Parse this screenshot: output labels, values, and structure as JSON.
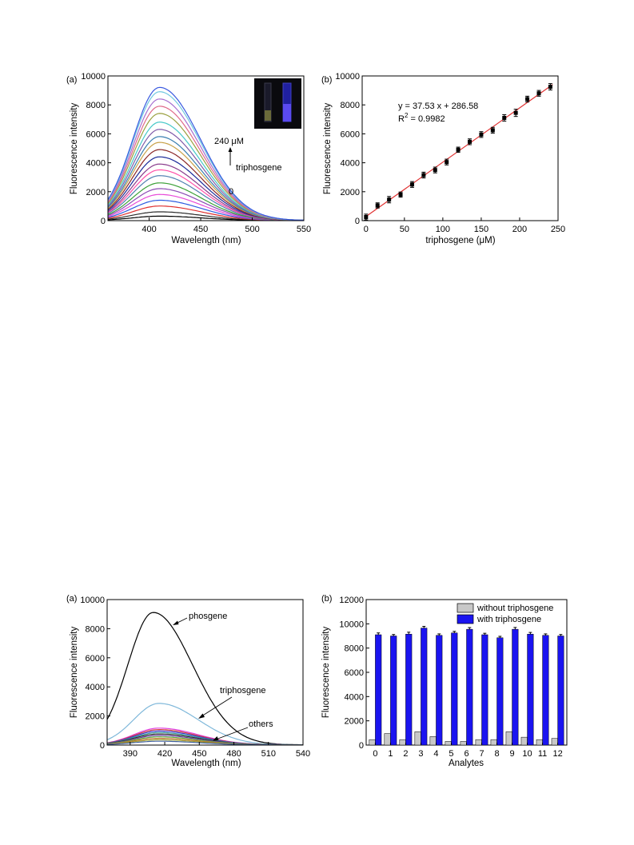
{
  "charts": {
    "a": {
      "panel_label": "(a)",
      "xlabel": "Wavelength (nm)",
      "ylabel": "Fluorescence intensity",
      "xticks": [
        "400",
        "450",
        "500",
        "550"
      ],
      "yticks": [
        "0",
        "2000",
        "4000",
        "6000",
        "8000",
        "10000"
      ],
      "top_label": "240 μM",
      "middle_label": "triphosgene",
      "bottom_label": "0"
    },
    "b": {
      "panel_label": "(b)",
      "xlabel": "triphosgene (μM)",
      "ylabel": "Fluorescence intensity",
      "xticks": [
        "0",
        "50",
        "100",
        "150",
        "200",
        "250"
      ],
      "yticks": [
        "0",
        "2000",
        "4000",
        "6000",
        "8000",
        "10000"
      ],
      "equation": "y = 37.53 x + 286.58",
      "r2_label": "R",
      "r2_sup": "2",
      "r2_value": " = 0.9982"
    },
    "c": {
      "panel_label": "(a)",
      "xlabel": "Wavelength (nm)",
      "ylabel": "Fluorescence intensity",
      "xticks": [
        "390",
        "420",
        "450",
        "480",
        "510",
        "540"
      ],
      "yticks": [
        "0",
        "2000",
        "4000",
        "6000",
        "8000",
        "10000"
      ],
      "label_phosgene": "phosgene",
      "label_triphosgene": "triphosgene",
      "label_others": "others"
    },
    "d": {
      "panel_label": "(b)",
      "xlabel": "Analytes",
      "ylabel": "Fluorescence intensity",
      "xticks": [
        "0",
        "1",
        "2",
        "3",
        "4",
        "5",
        "6",
        "7",
        "8",
        "9",
        "10",
        "11",
        "12"
      ],
      "yticks": [
        "0",
        "2000",
        "4000",
        "6000",
        "8000",
        "10000",
        "12000"
      ],
      "legend_without": "without triphosgene",
      "legend_with": "with triphosgene"
    }
  },
  "chart_data": [
    {
      "type": "line",
      "x_range": [
        360,
        550
      ],
      "ylim": [
        0,
        10000
      ],
      "peak_wavelength_nm": 410,
      "series_peaks": [
        300,
        600,
        1000,
        1400,
        1800,
        2200,
        2600,
        3100,
        3500,
        3900,
        4400,
        4900,
        5400,
        5800,
        6300,
        6800,
        7400,
        7900,
        8400,
        8900,
        9200
      ],
      "colors": [
        "#000000",
        "#2b2b2b",
        "#e03030",
        "#2d5ce0",
        "#e84ad8",
        "#8c4bb5",
        "#3aa036",
        "#4f7fb0",
        "#ff4fa8",
        "#8a3c8c",
        "#1c2c9a",
        "#8a2626",
        "#c8a24a",
        "#3a7fb0",
        "#7f5aa8",
        "#45c8c8",
        "#9aa040",
        "#e06a8a",
        "#a66fd0",
        "#6fc8e0",
        "#3a5ae0"
      ],
      "inset": "photo of two vials under UV light; right vial glows blue"
    },
    {
      "type": "scatter",
      "x": [
        0,
        15,
        30,
        45,
        60,
        75,
        90,
        105,
        120,
        135,
        150,
        165,
        180,
        195,
        210,
        225,
        240
      ],
      "y": [
        250,
        1050,
        1450,
        1800,
        2500,
        3150,
        3500,
        4050,
        4900,
        5450,
        5950,
        6250,
        7100,
        7450,
        8400,
        8800,
        9250
      ],
      "yerr": [
        200,
        180,
        220,
        180,
        200,
        200,
        200,
        200,
        180,
        200,
        200,
        200,
        220,
        250,
        200,
        200,
        220
      ],
      "fit": {
        "slope": 37.53,
        "intercept": 286.58
      },
      "xlim": [
        -5,
        250
      ],
      "ylim": [
        0,
        10000
      ]
    },
    {
      "type": "line",
      "x_range": [
        370,
        540
      ],
      "ylim": [
        0,
        10000
      ],
      "series": [
        {
          "name": "phosgene",
          "peak": 9100,
          "peak_x": 410,
          "color": "#000000"
        },
        {
          "name": "triphosgene",
          "peak": 2850,
          "peak_x": 415,
          "color": "#7fb8da"
        },
        {
          "peak": 1150,
          "peak_x": 415,
          "color": "#e040e0"
        },
        {
          "peak": 1050,
          "peak_x": 415,
          "color": "#d03a3a"
        },
        {
          "peak": 950,
          "peak_x": 415,
          "color": "#3a3ad0"
        },
        {
          "peak": 850,
          "peak_x": 415,
          "color": "#3aa0a0"
        },
        {
          "peak": 750,
          "peak_x": 415,
          "color": "#303030"
        },
        {
          "peak": 650,
          "peak_x": 415,
          "color": "#6a3aa0"
        },
        {
          "peak": 550,
          "peak_x": 415,
          "color": "#60b040"
        },
        {
          "peak": 450,
          "peak_x": 415,
          "color": "#c07030"
        },
        {
          "peak": 350,
          "peak_x": 415,
          "color": "#a0a030"
        },
        {
          "peak": 250,
          "peak_x": 415,
          "color": "#4060a0"
        }
      ]
    },
    {
      "type": "bar",
      "categories": [
        "0",
        "1",
        "2",
        "3",
        "4",
        "5",
        "6",
        "7",
        "8",
        "9",
        "10",
        "11",
        "12"
      ],
      "series": [
        {
          "name": "without triphosgene",
          "color": "#c8c8c8",
          "values": [
            450,
            950,
            450,
            1100,
            700,
            300,
            300,
            450,
            450,
            1100,
            650,
            450,
            550
          ]
        },
        {
          "name": "with triphosgene",
          "color": "#1a14f0",
          "values": [
            9100,
            9000,
            9150,
            9650,
            9050,
            9250,
            9550,
            9100,
            8850,
            9550,
            9150,
            9050,
            9000
          ]
        }
      ],
      "errors": [
        150,
        120,
        160,
        140,
        120,
        130,
        140,
        120,
        120,
        150,
        140,
        120,
        120
      ],
      "ylim": [
        0,
        12000
      ]
    }
  ]
}
